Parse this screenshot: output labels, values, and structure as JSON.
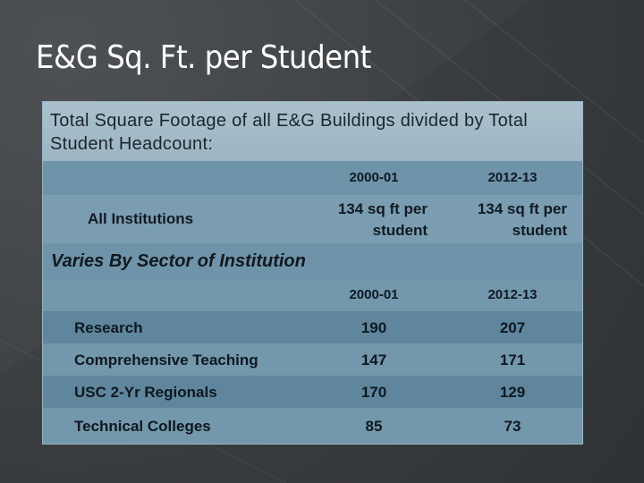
{
  "slide": {
    "title": "E&G Sq. Ft. per Student"
  },
  "panel": {
    "heading": "Total Square Footage of all E&G Buildings divided by Total Student Headcount:",
    "columns": [
      "2000-01",
      "2012-13"
    ],
    "all_institutions": {
      "label": "All Institutions",
      "values": [
        "134 sq ft per student",
        "134 sq ft per student"
      ]
    },
    "sector_title": "Varies By Sector of Institution",
    "sector_columns": [
      "2000-01",
      "2012-13"
    ],
    "sectors": [
      {
        "name": "Research",
        "v2000": "190",
        "v2012": "207"
      },
      {
        "name": "Comprehensive Teaching",
        "v2000": "147",
        "v2012": "171"
      },
      {
        "name": "USC 2-Yr Regionals",
        "v2000": "170",
        "v2012": "129"
      },
      {
        "name": "Technical Colleges",
        "v2000": "85",
        "v2012": "73"
      }
    ]
  },
  "colors": {
    "background": "#3a3d40",
    "panel": "#6a8ea3",
    "panel_header": "#aac0cd",
    "title_text": "#ffffff"
  }
}
